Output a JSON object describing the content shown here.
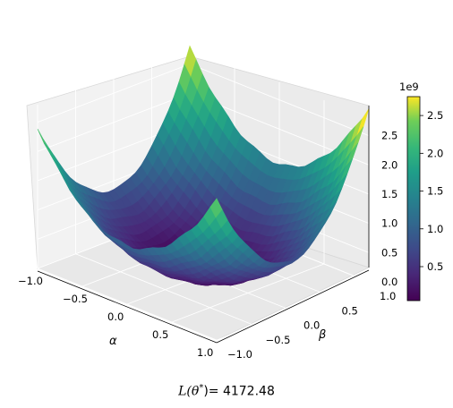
{
  "chart_data": {
    "type": "surface3d",
    "title": "",
    "xlabel": "α",
    "ylabel": "β",
    "zlabel": "",
    "x_range": [
      -1.0,
      1.0
    ],
    "y_range": [
      -1.0,
      1.0
    ],
    "z_range": [
      0,
      2800000000.0
    ],
    "x_ticks": [
      "−1.0",
      "−0.5",
      "0.0",
      "0.5",
      "1.0"
    ],
    "y_ticks": [
      "−1.0",
      "−0.5",
      "0.0",
      "0.5",
      "1.0"
    ],
    "z_ticks": [
      "0.0",
      "0.5",
      "1.0",
      "1.5",
      "2.0",
      "2.5"
    ],
    "z_offset_text": "1e9",
    "colormap": "viridis",
    "colorbar": {
      "ticks": [
        "0.5",
        "1.0",
        "1.5",
        "2.0",
        "2.5"
      ],
      "tick_values": [
        0.5,
        1.0,
        1.5,
        2.0,
        2.5
      ],
      "range": [
        0.05,
        2.75
      ],
      "offset_text": "1e9"
    },
    "surface": {
      "description_values_units": "z in units of 1e9",
      "corners": {
        "alpha_-1_beta_-1": 1.6,
        "alpha_1_beta_-1": 1.6,
        "alpha_-1_beta_1": 2.2,
        "alpha_1_beta_1": 2.75
      },
      "minimum": {
        "alpha": 0.0,
        "beta": 0.0,
        "z": 0.0
      }
    },
    "grid": true
  },
  "caption": {
    "prefix": "L(θ",
    "sup": "*",
    "suffix": ")= 4172.48"
  }
}
